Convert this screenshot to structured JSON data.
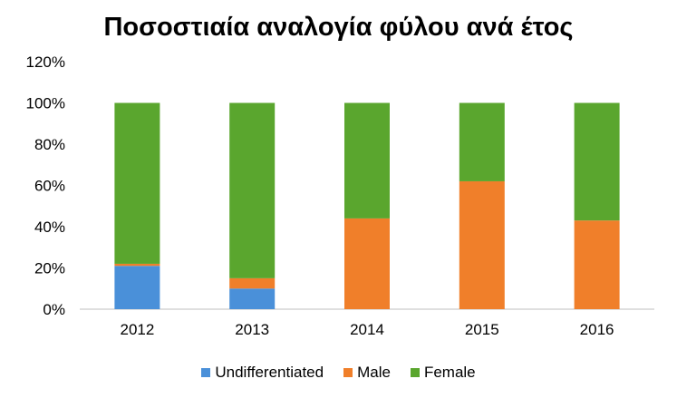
{
  "chart_data": {
    "type": "bar",
    "stacked": true,
    "title": "Ποσοστιαία αναλογία φύλου ανά έτος",
    "xlabel": "",
    "ylabel": "",
    "categories": [
      "2012",
      "2013",
      "2014",
      "2015",
      "2016"
    ],
    "series": [
      {
        "name": "Undifferentiated",
        "color": "#4a90d9",
        "values": [
          21,
          10,
          0,
          0,
          0
        ]
      },
      {
        "name": "Male",
        "color": "#f07f2a",
        "values": [
          1,
          5,
          44,
          62,
          43
        ]
      },
      {
        "name": "Female",
        "color": "#5aa62e",
        "values": [
          78,
          85,
          56,
          38,
          57
        ]
      }
    ],
    "ylim": [
      0,
      120
    ],
    "yticks": [
      "0%",
      "20%",
      "40%",
      "60%",
      "80%",
      "100%",
      "120%"
    ],
    "grid": false,
    "legend_position": "bottom"
  }
}
